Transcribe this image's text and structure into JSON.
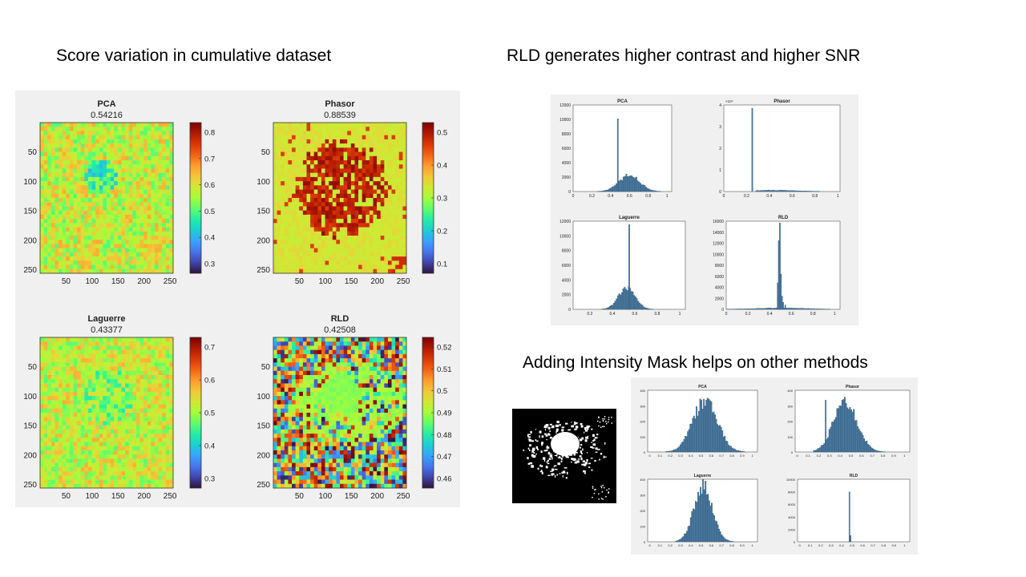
{
  "slide": {
    "heading_left": "Score variation in cumulative dataset",
    "heading_right_top": "RLD generates higher contrast and higher SNR",
    "heading_right_bottom": "Adding Intensity Mask helps on other methods"
  },
  "score_maps": [
    {
      "name": "PCA",
      "score": "0.54216",
      "cbar_ticks": [
        "0.8",
        "0.7",
        "0.6",
        "0.5",
        "0.4",
        "0.3"
      ],
      "colormap": "turbo"
    },
    {
      "name": "Phasor",
      "score": "0.88539",
      "cbar_ticks": [
        "0.5",
        "0.4",
        "0.3",
        "0.2",
        "0.1"
      ],
      "colormap": "turbo"
    },
    {
      "name": "Laguerre",
      "score": "0.43377",
      "cbar_ticks": [
        "0.7",
        "0.6",
        "0.5",
        "0.4",
        "0.3"
      ],
      "colormap": "turbo"
    },
    {
      "name": "RLD",
      "score": "0.42508",
      "cbar_ticks": [
        "0.52",
        "0.51",
        "0.5",
        "0.49",
        "0.48",
        "0.47",
        "0.46"
      ],
      "colormap": "turbo"
    }
  ],
  "map_axes": {
    "x_ticks": [
      "50",
      "100",
      "150",
      "200",
      "250"
    ],
    "y_ticks": [
      "50",
      "100",
      "150",
      "200",
      "250"
    ]
  },
  "histograms_top": [
    {
      "name": "PCA",
      "y_ticks": [
        "12000",
        "10000",
        "8000",
        "6000",
        "4000",
        "2000",
        "0"
      ],
      "y_exponent": "",
      "x_ticks": [
        "0",
        "0.2",
        "0.4",
        "0.6",
        "0.8",
        "1"
      ]
    },
    {
      "name": "Phasor",
      "y_ticks": [
        "4",
        "3",
        "2",
        "1",
        "0"
      ],
      "y_exponent": "×10⁴",
      "x_ticks": [
        "0",
        "0.2",
        "0.4",
        "0.6",
        "0.8",
        "1"
      ]
    },
    {
      "name": "Laguerre",
      "y_ticks": [
        "12000",
        "10000",
        "8000",
        "6000",
        "4000",
        "2000",
        "0"
      ],
      "y_exponent": "",
      "x_ticks": [
        "0.2",
        "0.4",
        "0.6",
        "0.8",
        "1"
      ]
    },
    {
      "name": "RLD",
      "y_ticks": [
        "16000",
        "14000",
        "12000",
        "10000",
        "8000",
        "6000",
        "4000",
        "2000",
        "0"
      ],
      "y_exponent": "",
      "x_ticks": [
        "0",
        "0.2",
        "0.4",
        "0.6",
        "0.8",
        "1"
      ]
    }
  ],
  "histograms_bottom": [
    {
      "name": "PCA",
      "y_ticks": [
        "400",
        "300",
        "200",
        "100",
        "0"
      ],
      "x_ticks": [
        "0",
        "0.1",
        "0.2",
        "0.3",
        "0.4",
        "0.5",
        "0.6",
        "0.7",
        "0.8",
        "0.9",
        "1"
      ]
    },
    {
      "name": "Phasor",
      "y_ticks": [
        "400",
        "300",
        "200",
        "100",
        "0"
      ],
      "x_ticks": [
        "0",
        "0.1",
        "0.2",
        "0.3",
        "0.4",
        "0.5",
        "0.6",
        "0.7",
        "0.8",
        "0.9",
        "1"
      ]
    },
    {
      "name": "Laguerre",
      "y_ticks": [
        "400",
        "300",
        "200",
        "100",
        "0"
      ],
      "x_ticks": [
        "0",
        "0.1",
        "0.2",
        "0.3",
        "0.4",
        "0.5",
        "0.6",
        "0.7",
        "0.8",
        "0.9",
        "1"
      ]
    },
    {
      "name": "RLD",
      "y_ticks": [
        "10000",
        "8000",
        "6000",
        "4000",
        "2000",
        "0"
      ],
      "x_ticks": [
        "0",
        "0.1",
        "0.2",
        "0.3",
        "0.4",
        "0.5",
        "0.6",
        "0.7",
        "0.8",
        "0.9",
        "1"
      ]
    }
  ],
  "colors": {
    "bar_fill": "#4a7aa1",
    "bar_edge": "#2c4f6e",
    "panel_bg": "#f0f0f0"
  }
}
